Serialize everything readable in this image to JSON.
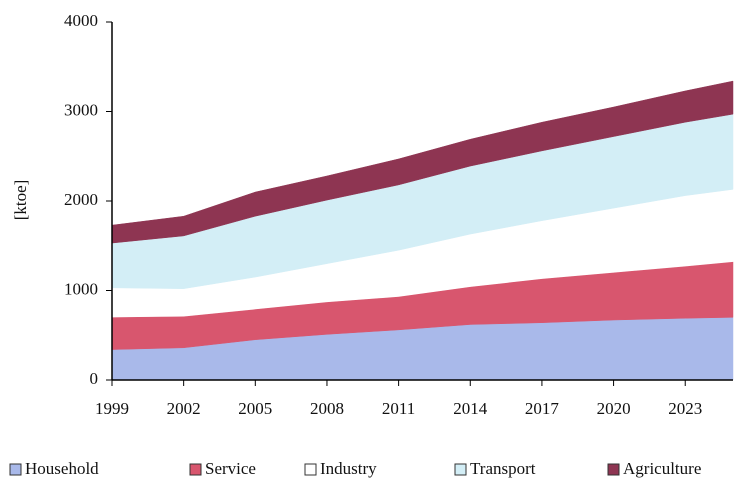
{
  "chart_data": {
    "type": "stacked_area",
    "y_label": "[ktoe]",
    "x": [
      1999,
      2002,
      2005,
      2008,
      2011,
      2014,
      2017,
      2020,
      2023,
      2025
    ],
    "xlim": [
      1999,
      2025
    ],
    "xticks": [
      1999,
      2002,
      2005,
      2008,
      2011,
      2014,
      2017,
      2020,
      2023
    ],
    "ylim": [
      0,
      4000
    ],
    "yticks": [
      0,
      1000,
      2000,
      3000,
      4000
    ],
    "series": [
      {
        "name": "Household",
        "color": "#a9b9ea",
        "values": [
          340,
          360,
          450,
          510,
          560,
          620,
          640,
          670,
          690,
          700
        ]
      },
      {
        "name": "Service",
        "color": "#d8566e",
        "values": [
          360,
          350,
          340,
          360,
          370,
          420,
          490,
          530,
          580,
          620
        ]
      },
      {
        "name": "Industry",
        "color": "#ffffff",
        "values": [
          330,
          310,
          360,
          430,
          520,
          590,
          650,
          720,
          790,
          810
        ]
      },
      {
        "name": "Transport",
        "color": "#d3eef6",
        "values": [
          500,
          590,
          680,
          710,
          730,
          760,
          780,
          800,
          820,
          840
        ]
      },
      {
        "name": "Agriculture",
        "color": "#8e3552",
        "values": [
          200,
          220,
          270,
          270,
          290,
          300,
          320,
          330,
          350,
          370
        ]
      }
    ]
  }
}
